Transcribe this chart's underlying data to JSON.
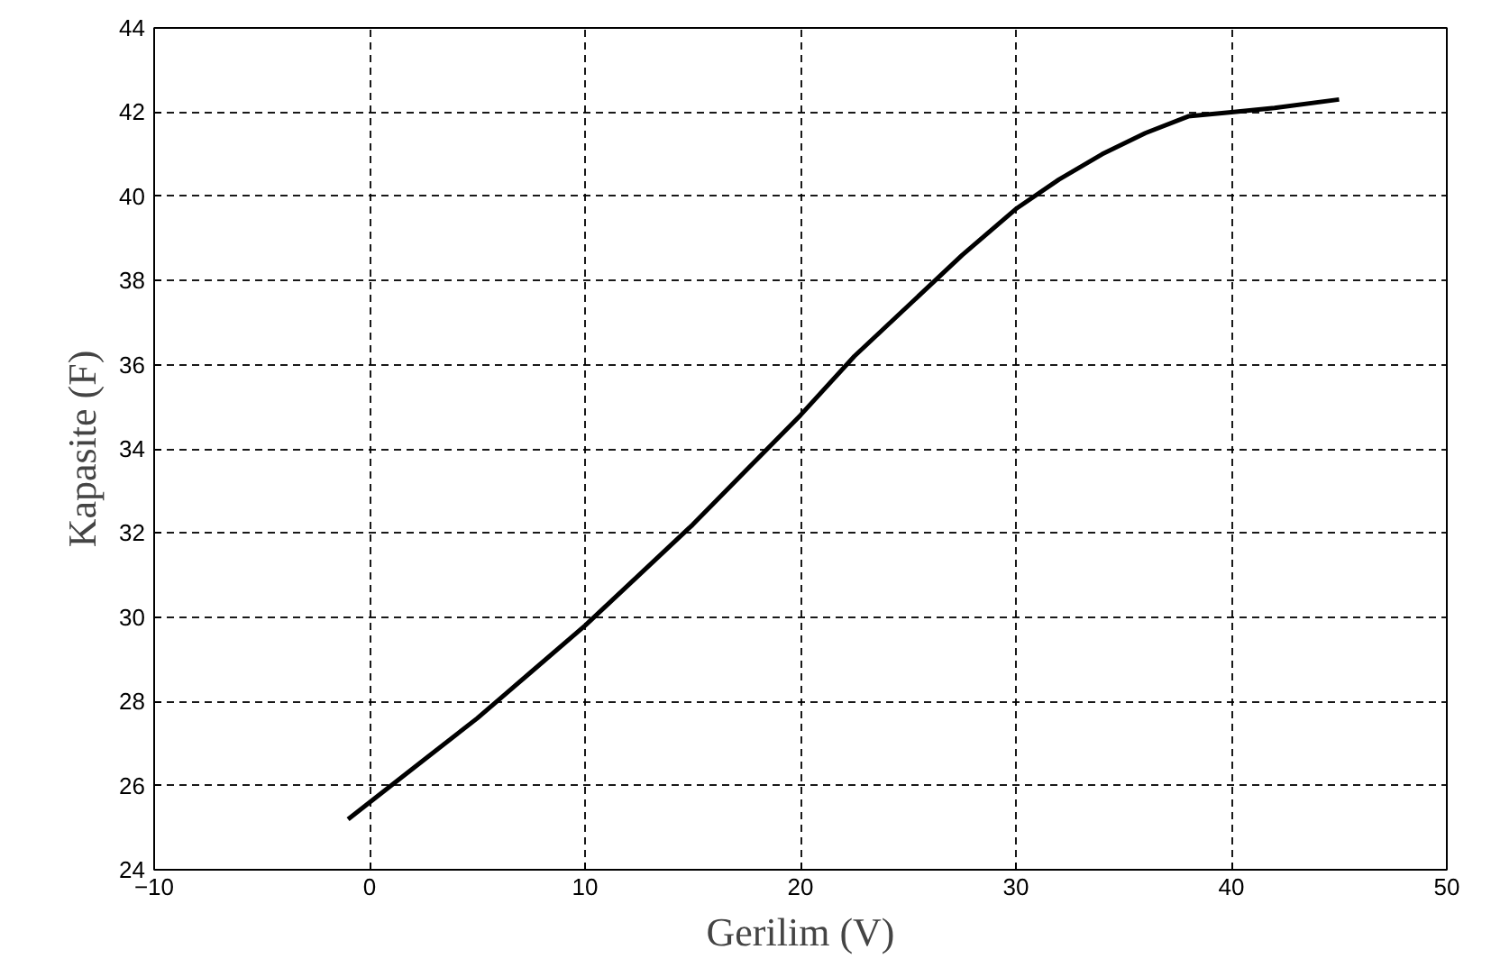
{
  "chart_data": {
    "type": "line",
    "xlabel": "Gerilim (V)",
    "ylabel": "Kapasite (F)",
    "xlim": [
      -10,
      50
    ],
    "xticks": [
      -10,
      0,
      10,
      20,
      30,
      40,
      50
    ],
    "ylim": [
      24,
      44
    ],
    "yticks": [
      24,
      26,
      28,
      30,
      32,
      34,
      36,
      38,
      40,
      42,
      44
    ],
    "grid": true,
    "line_style": "solid",
    "series": [
      {
        "color": "#000000",
        "x": [
          -1,
          0,
          2.5,
          5,
          7.5,
          10,
          12.5,
          15,
          17.5,
          20,
          22.5,
          25,
          27.5,
          30,
          32,
          34,
          36,
          38,
          40,
          42,
          45
        ],
        "values": [
          25.2,
          25.6,
          26.6,
          27.6,
          28.7,
          29.8,
          31.0,
          32.2,
          33.5,
          34.8,
          36.2,
          37.4,
          38.6,
          39.7,
          40.4,
          41.0,
          41.5,
          41.9,
          42.0,
          42.1,
          42.3
        ]
      }
    ]
  }
}
